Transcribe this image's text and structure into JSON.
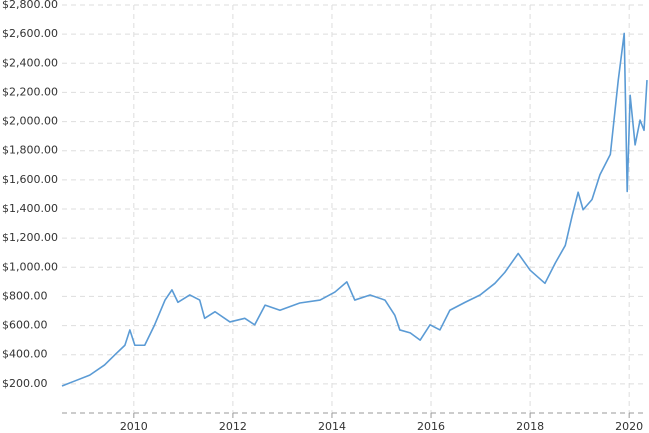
{
  "chart_data": {
    "type": "line",
    "x": [
      2008.55,
      2008.81,
      2009.11,
      2009.41,
      2009.62,
      2009.82,
      2009.92,
      2010.02,
      2010.22,
      2010.42,
      2010.63,
      2010.77,
      2010.89,
      2011.13,
      2011.33,
      2011.43,
      2011.64,
      2011.94,
      2012.24,
      2012.44,
      2012.65,
      2012.95,
      2013.35,
      2013.76,
      2014.06,
      2014.3,
      2014.46,
      2014.77,
      2015.07,
      2015.27,
      2015.37,
      2015.58,
      2015.78,
      2015.98,
      2016.18,
      2016.38,
      2016.69,
      2016.99,
      2017.29,
      2017.49,
      2017.76,
      2018.0,
      2018.3,
      2018.51,
      2018.71,
      2018.85,
      2018.97,
      2019.07,
      2019.25,
      2019.41,
      2019.62,
      2019.78,
      2019.9,
      2019.96,
      2020.02,
      2020.12,
      2020.22,
      2020.3,
      2020.36
    ],
    "series": [
      {
        "color": "#5b9bd5",
        "values": [
          185,
          220,
          260,
          330,
          400,
          465,
          570,
          465,
          465,
          605,
          775,
          845,
          760,
          810,
          775,
          650,
          695,
          625,
          650,
          605,
          740,
          705,
          755,
          775,
          830,
          900,
          775,
          810,
          775,
          670,
          570,
          550,
          500,
          605,
          570,
          705,
          760,
          810,
          890,
          965,
          1095,
          980,
          890,
          1030,
          1150,
          1355,
          1515,
          1395,
          1465,
          1635,
          1775,
          2285,
          2605,
          1520,
          2180,
          1840,
          2010,
          1940,
          2285
        ]
      }
    ],
    "xlim": [
      2008.55,
      2020.36
    ],
    "xticks": [
      2010,
      2012,
      2014,
      2016,
      2018,
      2020
    ],
    "ylim": [
      0,
      2800
    ],
    "yticks": [
      {
        "value": 200,
        "label": "$200.00"
      },
      {
        "value": 400,
        "label": "$400.00"
      },
      {
        "value": 600,
        "label": "$600.00"
      },
      {
        "value": 800,
        "label": "$800.00"
      },
      {
        "value": 1000,
        "label": "$1,000.00"
      },
      {
        "value": 1200,
        "label": "$1,200.00"
      },
      {
        "value": 1400,
        "label": "$1,400.00"
      },
      {
        "value": 1600,
        "label": "$1,600.00"
      },
      {
        "value": 1800,
        "label": "$1,800.00"
      },
      {
        "value": 2000,
        "label": "$2,000.00"
      },
      {
        "value": 2200,
        "label": "$2,200.00"
      },
      {
        "value": 2400,
        "label": "$2,400.00"
      },
      {
        "value": 2600,
        "label": "$2,600.00"
      },
      {
        "value": 2800,
        "label": "$2,800.00"
      }
    ],
    "grid": true
  }
}
